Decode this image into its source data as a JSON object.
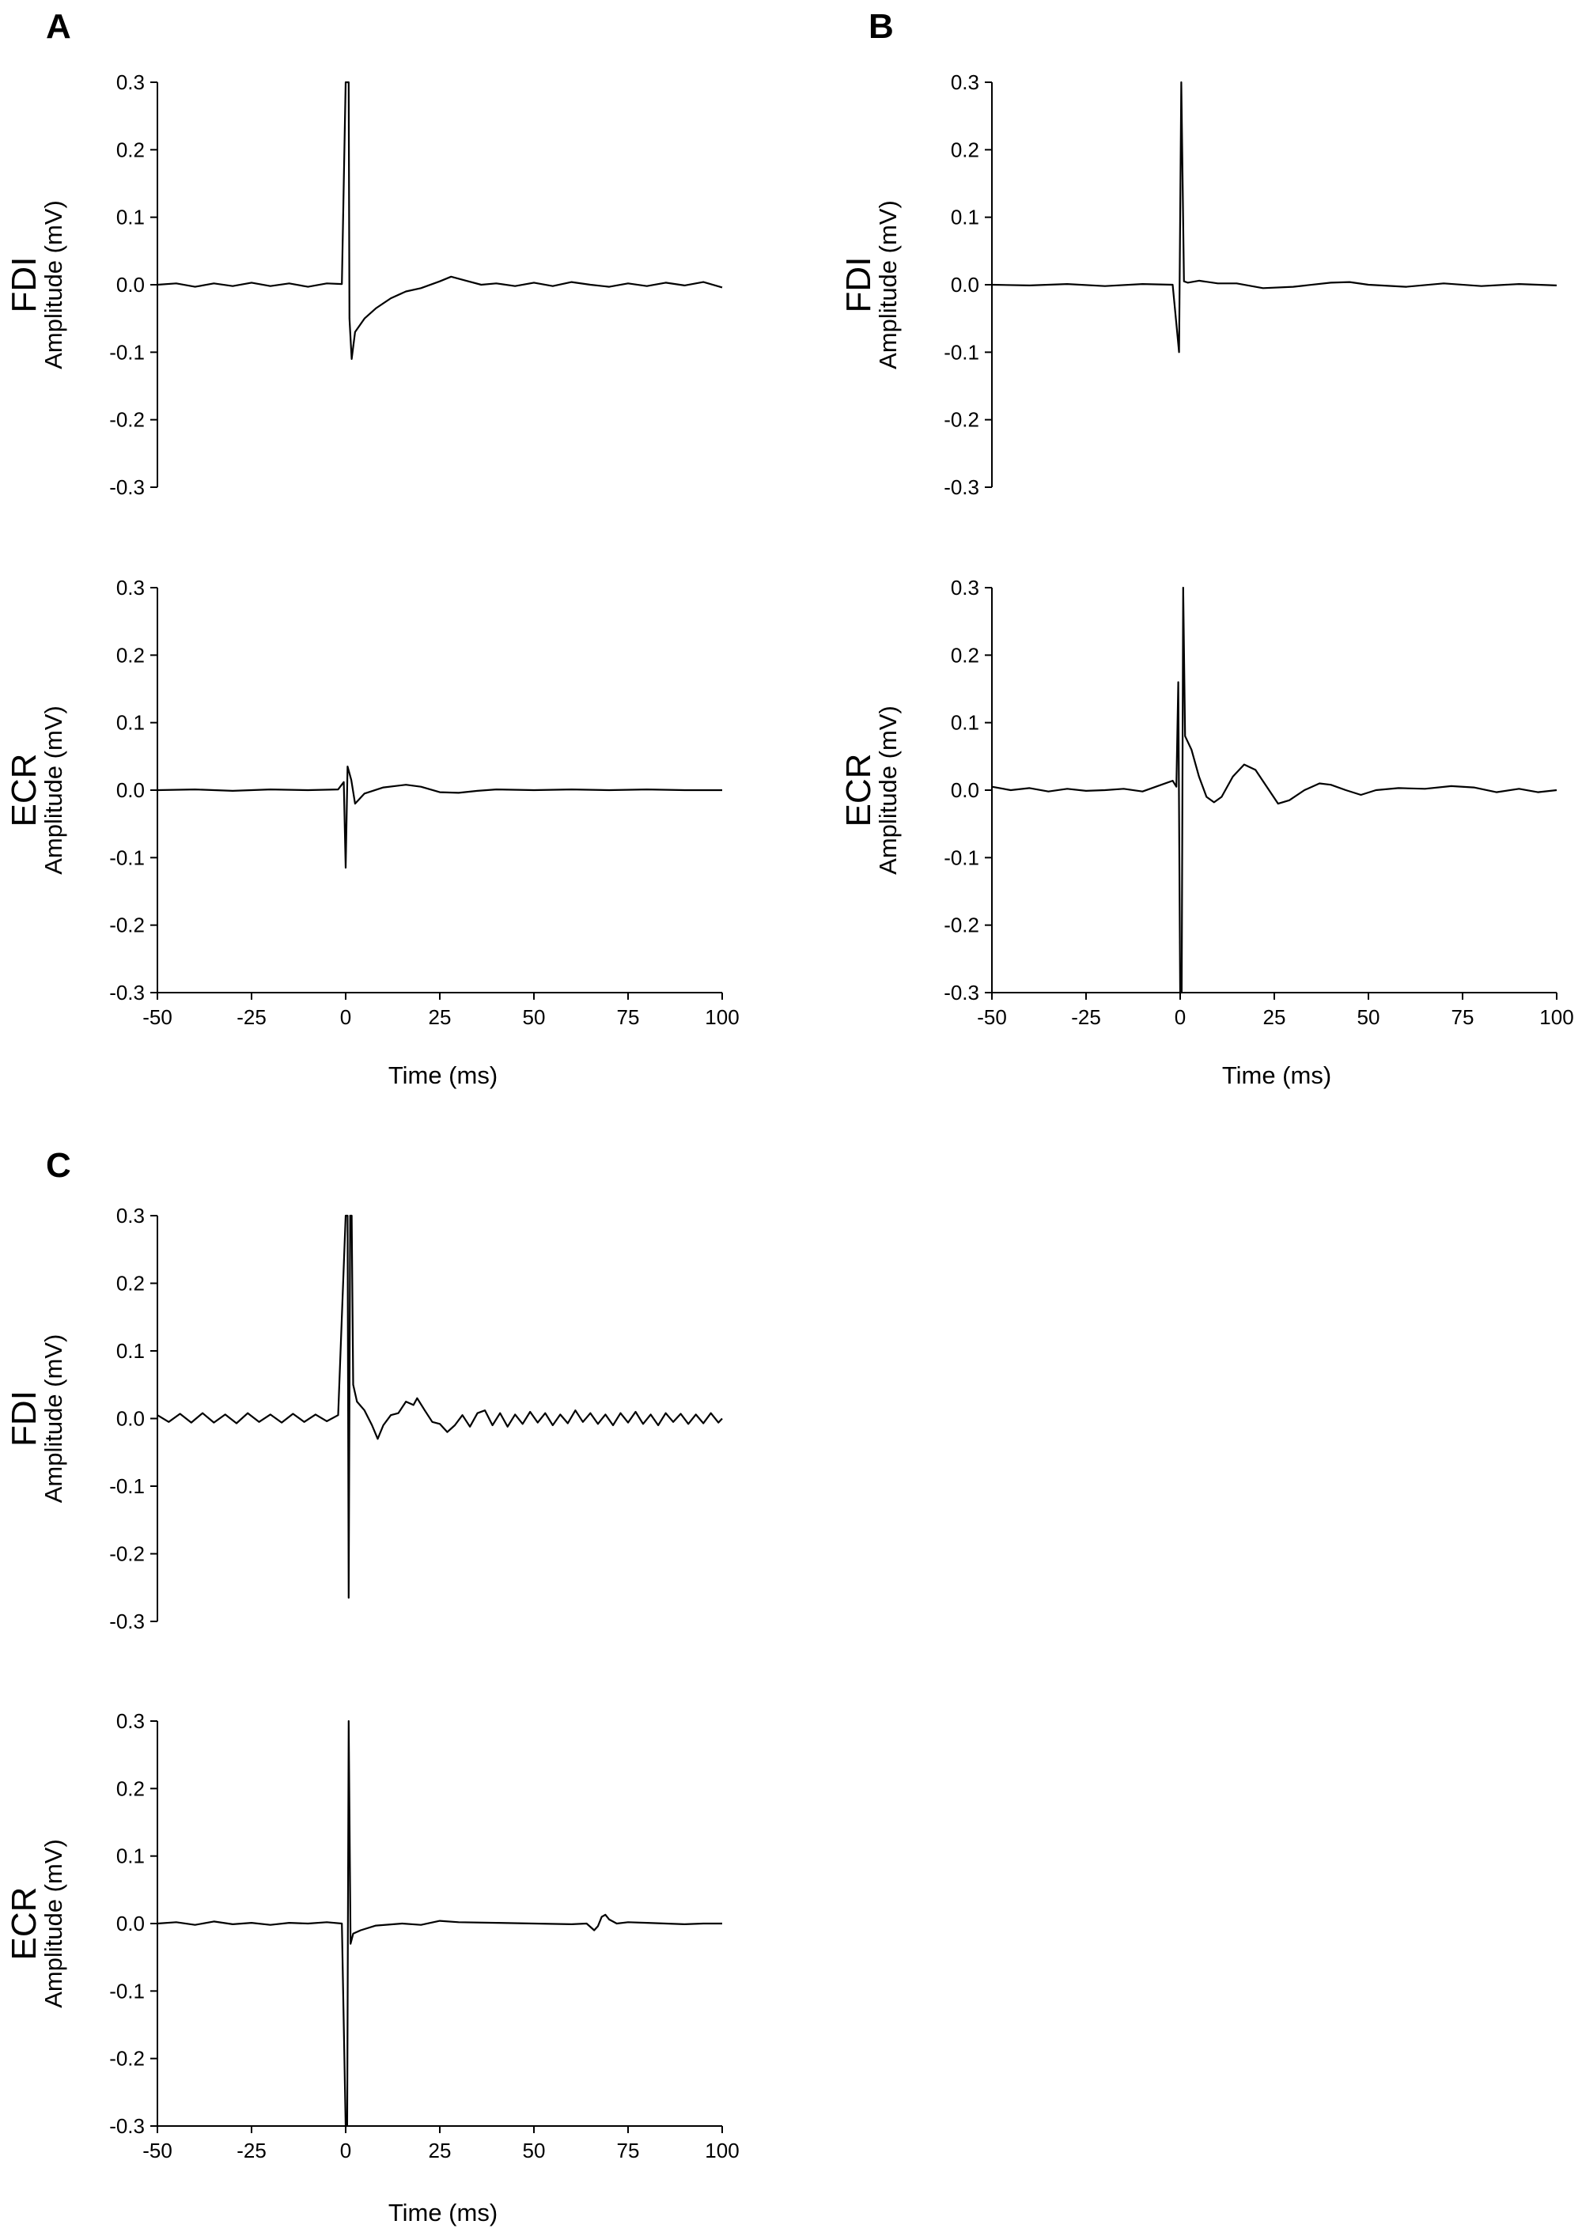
{
  "figure": {
    "panel_labels": [
      "A",
      "B",
      "C"
    ],
    "amplitude_label": "Amplitude (mV)",
    "time_label": "Time (ms)"
  },
  "chart_data": [
    {
      "type": "line",
      "panel": "A",
      "muscle": "FDI",
      "xlabel": "",
      "ylabel": "Amplitude (mV)",
      "xlim": [
        -50,
        100
      ],
      "ylim": [
        -0.3,
        0.3
      ],
      "yticks": [
        "0.3",
        "0.2",
        "0.1",
        "0.0",
        "-0.1",
        "-0.2",
        "-0.3"
      ],
      "xticks": [],
      "series": [
        {
          "name": "FDI",
          "points": [
            [
              -50,
              0
            ],
            [
              -45,
              0.002
            ],
            [
              -40,
              -0.003
            ],
            [
              -35,
              0.002
            ],
            [
              -30,
              -0.002
            ],
            [
              -25,
              0.003
            ],
            [
              -20,
              -0.002
            ],
            [
              -15,
              0.002
            ],
            [
              -10,
              -0.003
            ],
            [
              -5,
              0.002
            ],
            [
              -1,
              0.001
            ],
            [
              0,
              0.3
            ],
            [
              0.8,
              0.3
            ],
            [
              1,
              -0.05
            ],
            [
              1.6,
              -0.11
            ],
            [
              2.5,
              -0.07
            ],
            [
              5,
              -0.05
            ],
            [
              8,
              -0.035
            ],
            [
              12,
              -0.02
            ],
            [
              16,
              -0.01
            ],
            [
              20,
              -0.005
            ],
            [
              25,
              0.005
            ],
            [
              28,
              0.012
            ],
            [
              32,
              0.006
            ],
            [
              36,
              0
            ],
            [
              40,
              0.002
            ],
            [
              45,
              -0.002
            ],
            [
              50,
              0.003
            ],
            [
              55,
              -0.002
            ],
            [
              60,
              0.004
            ],
            [
              65,
              0
            ],
            [
              70,
              -0.003
            ],
            [
              75,
              0.002
            ],
            [
              80,
              -0.002
            ],
            [
              85,
              0.003
            ],
            [
              90,
              -0.001
            ],
            [
              95,
              0.004
            ],
            [
              100,
              -0.004
            ]
          ]
        }
      ]
    },
    {
      "type": "line",
      "panel": "A",
      "muscle": "ECR",
      "xlabel": "Time (ms)",
      "ylabel": "Amplitude (mV)",
      "xlim": [
        -50,
        100
      ],
      "ylim": [
        -0.3,
        0.3
      ],
      "yticks": [
        "0.3",
        "0.2",
        "0.1",
        "0.0",
        "-0.1",
        "-0.2",
        "-0.3"
      ],
      "xticks": [
        "-50",
        "-25",
        "0",
        "25",
        "50",
        "75",
        "100"
      ],
      "series": [
        {
          "name": "ECR",
          "points": [
            [
              -50,
              0
            ],
            [
              -40,
              0.001
            ],
            [
              -30,
              -0.001
            ],
            [
              -20,
              0.001
            ],
            [
              -10,
              0
            ],
            [
              -2,
              0.001
            ],
            [
              -0.5,
              0.012
            ],
            [
              0,
              -0.115
            ],
            [
              0.5,
              0.035
            ],
            [
              1.5,
              0.015
            ],
            [
              2.5,
              -0.02
            ],
            [
              5,
              -0.005
            ],
            [
              10,
              0.004
            ],
            [
              16,
              0.008
            ],
            [
              20,
              0.005
            ],
            [
              25,
              -0.003
            ],
            [
              30,
              -0.004
            ],
            [
              35,
              -0.001
            ],
            [
              40,
              0.001
            ],
            [
              50,
              0
            ],
            [
              60,
              0.001
            ],
            [
              70,
              0
            ],
            [
              80,
              0.001
            ],
            [
              90,
              0
            ],
            [
              100,
              0
            ]
          ]
        }
      ]
    },
    {
      "type": "line",
      "panel": "B",
      "muscle": "FDI",
      "xlabel": "",
      "ylabel": "Amplitude (mV)",
      "xlim": [
        -50,
        100
      ],
      "ylim": [
        -0.3,
        0.3
      ],
      "yticks": [
        "0.3",
        "0.2",
        "0.1",
        "0.0",
        "-0.1",
        "-0.2",
        "-0.3"
      ],
      "xticks": [],
      "series": [
        {
          "name": "FDI",
          "points": [
            [
              -50,
              0
            ],
            [
              -40,
              -0.001
            ],
            [
              -30,
              0.001
            ],
            [
              -20,
              -0.002
            ],
            [
              -10,
              0.001
            ],
            [
              -2,
              0
            ],
            [
              -0.3,
              -0.1
            ],
            [
              0.3,
              0.3
            ],
            [
              1,
              0.005
            ],
            [
              2,
              0.003
            ],
            [
              5,
              0.006
            ],
            [
              10,
              0.002
            ],
            [
              15,
              0.002
            ],
            [
              22,
              -0.005
            ],
            [
              30,
              -0.003
            ],
            [
              40,
              0.003
            ],
            [
              45,
              0.004
            ],
            [
              50,
              0
            ],
            [
              60,
              -0.003
            ],
            [
              70,
              0.002
            ],
            [
              80,
              -0.002
            ],
            [
              90,
              0.001
            ],
            [
              100,
              -0.001
            ]
          ]
        }
      ]
    },
    {
      "type": "line",
      "panel": "B",
      "muscle": "ECR",
      "xlabel": "Time (ms)",
      "ylabel": "Amplitude (mV)",
      "xlim": [
        -50,
        100
      ],
      "ylim": [
        -0.3,
        0.3
      ],
      "yticks": [
        "0.3",
        "0.2",
        "0.1",
        "0.0",
        "-0.1",
        "-0.2",
        "-0.3"
      ],
      "xticks": [
        "-50",
        "-25",
        "0",
        "25",
        "50",
        "75",
        "100"
      ],
      "series": [
        {
          "name": "ECR",
          "points": [
            [
              -50,
              0.005
            ],
            [
              -45,
              0
            ],
            [
              -40,
              0.003
            ],
            [
              -35,
              -0.002
            ],
            [
              -30,
              0.002
            ],
            [
              -25,
              -0.001
            ],
            [
              -20,
              0
            ],
            [
              -15,
              0.002
            ],
            [
              -10,
              -0.002
            ],
            [
              -5,
              0.008
            ],
            [
              -2,
              0.014
            ],
            [
              -1,
              0.005
            ],
            [
              -0.5,
              0.16
            ],
            [
              0,
              -0.3
            ],
            [
              0.4,
              -0.3
            ],
            [
              0.8,
              0.3
            ],
            [
              1.3,
              0.08
            ],
            [
              3,
              0.06
            ],
            [
              5,
              0.02
            ],
            [
              7,
              -0.01
            ],
            [
              9,
              -0.018
            ],
            [
              11,
              -0.01
            ],
            [
              14,
              0.02
            ],
            [
              17,
              0.038
            ],
            [
              20,
              0.03
            ],
            [
              23,
              0.005
            ],
            [
              26,
              -0.02
            ],
            [
              29,
              -0.015
            ],
            [
              33,
              0
            ],
            [
              37,
              0.01
            ],
            [
              40,
              0.008
            ],
            [
              44,
              0
            ],
            [
              48,
              -0.007
            ],
            [
              52,
              0
            ],
            [
              58,
              0.003
            ],
            [
              65,
              0.002
            ],
            [
              72,
              0.006
            ],
            [
              78,
              0.004
            ],
            [
              84,
              -0.003
            ],
            [
              90,
              0.002
            ],
            [
              95,
              -0.003
            ],
            [
              100,
              0
            ]
          ]
        }
      ]
    },
    {
      "type": "line",
      "panel": "C",
      "muscle": "FDI",
      "xlabel": "",
      "ylabel": "Amplitude (mV)",
      "xlim": [
        -50,
        100
      ],
      "ylim": [
        -0.3,
        0.3
      ],
      "yticks": [
        "0.3",
        "0.2",
        "0.1",
        "0.0",
        "-0.1",
        "-0.2",
        "-0.3"
      ],
      "xticks": [],
      "series": [
        {
          "name": "FDI",
          "points": [
            [
              -50,
              0.005
            ],
            [
              -47,
              -0.005
            ],
            [
              -44,
              0.007
            ],
            [
              -41,
              -0.006
            ],
            [
              -38,
              0.008
            ],
            [
              -35,
              -0.006
            ],
            [
              -32,
              0.006
            ],
            [
              -29,
              -0.007
            ],
            [
              -26,
              0.008
            ],
            [
              -23,
              -0.005
            ],
            [
              -20,
              0.006
            ],
            [
              -17,
              -0.006
            ],
            [
              -14,
              0.007
            ],
            [
              -11,
              -0.005
            ],
            [
              -8,
              0.006
            ],
            [
              -5,
              -0.004
            ],
            [
              -2,
              0.005
            ],
            [
              0,
              0.3
            ],
            [
              0.5,
              0.3
            ],
            [
              0.8,
              -0.265
            ],
            [
              1.2,
              0.3
            ],
            [
              1.6,
              0.3
            ],
            [
              2,
              0.05
            ],
            [
              3,
              0.025
            ],
            [
              5,
              0.012
            ],
            [
              7,
              -0.01
            ],
            [
              8.5,
              -0.03
            ],
            [
              10,
              -0.01
            ],
            [
              12,
              0.005
            ],
            [
              14,
              0.008
            ],
            [
              16,
              0.025
            ],
            [
              18,
              0.02
            ],
            [
              19,
              0.03
            ],
            [
              21,
              0.012
            ],
            [
              23,
              -0.005
            ],
            [
              25,
              -0.008
            ],
            [
              27,
              -0.02
            ],
            [
              29,
              -0.01
            ],
            [
              31,
              0.005
            ],
            [
              33,
              -0.012
            ],
            [
              35,
              0.008
            ],
            [
              37,
              0.012
            ],
            [
              39,
              -0.01
            ],
            [
              41,
              0.008
            ],
            [
              43,
              -0.012
            ],
            [
              45,
              0.006
            ],
            [
              47,
              -0.008
            ],
            [
              49,
              0.01
            ],
            [
              51,
              -0.006
            ],
            [
              53,
              0.008
            ],
            [
              55,
              -0.01
            ],
            [
              57,
              0.006
            ],
            [
              59,
              -0.007
            ],
            [
              61,
              0.012
            ],
            [
              63,
              -0.005
            ],
            [
              65,
              0.008
            ],
            [
              67,
              -0.008
            ],
            [
              69,
              0.006
            ],
            [
              71,
              -0.01
            ],
            [
              73,
              0.008
            ],
            [
              75,
              -0.006
            ],
            [
              77,
              0.01
            ],
            [
              79,
              -0.008
            ],
            [
              81,
              0.006
            ],
            [
              83,
              -0.01
            ],
            [
              85,
              0.008
            ],
            [
              87,
              -0.005
            ],
            [
              89,
              0.007
            ],
            [
              91,
              -0.008
            ],
            [
              93,
              0.006
            ],
            [
              95,
              -0.007
            ],
            [
              97,
              0.008
            ],
            [
              99,
              -0.006
            ],
            [
              100,
              0
            ]
          ]
        }
      ]
    },
    {
      "type": "line",
      "panel": "C",
      "muscle": "ECR",
      "xlabel": "Time (ms)",
      "ylabel": "Amplitude (mV)",
      "xlim": [
        -50,
        100
      ],
      "ylim": [
        -0.3,
        0.3
      ],
      "yticks": [
        "0.3",
        "0.2",
        "0.1",
        "0.0",
        "-0.1",
        "-0.2",
        "-0.3"
      ],
      "xticks": [
        "-50",
        "-25",
        "0",
        "25",
        "50",
        "75",
        "100"
      ],
      "series": [
        {
          "name": "ECR",
          "points": [
            [
              -50,
              0
            ],
            [
              -45,
              0.002
            ],
            [
              -40,
              -0.002
            ],
            [
              -35,
              0.003
            ],
            [
              -30,
              -0.001
            ],
            [
              -25,
              0.001
            ],
            [
              -20,
              -0.002
            ],
            [
              -15,
              0.001
            ],
            [
              -10,
              0
            ],
            [
              -5,
              0.002
            ],
            [
              -1,
              0
            ],
            [
              0,
              -0.3
            ],
            [
              0.4,
              -0.3
            ],
            [
              0.8,
              0.3
            ],
            [
              1.3,
              -0.03
            ],
            [
              2,
              -0.015
            ],
            [
              4,
              -0.01
            ],
            [
              8,
              -0.003
            ],
            [
              15,
              0
            ],
            [
              20,
              -0.002
            ],
            [
              25,
              0.004
            ],
            [
              30,
              0.002
            ],
            [
              40,
              0.001
            ],
            [
              50,
              0
            ],
            [
              60,
              -0.001
            ],
            [
              64,
              0
            ],
            [
              66,
              -0.01
            ],
            [
              67,
              -0.004
            ],
            [
              68,
              0.01
            ],
            [
              69,
              0.013
            ],
            [
              70,
              0.006
            ],
            [
              72,
              0
            ],
            [
              75,
              0.002
            ],
            [
              80,
              0.001
            ],
            [
              85,
              0
            ],
            [
              90,
              -0.001
            ],
            [
              95,
              0
            ],
            [
              100,
              0
            ]
          ]
        }
      ]
    }
  ]
}
